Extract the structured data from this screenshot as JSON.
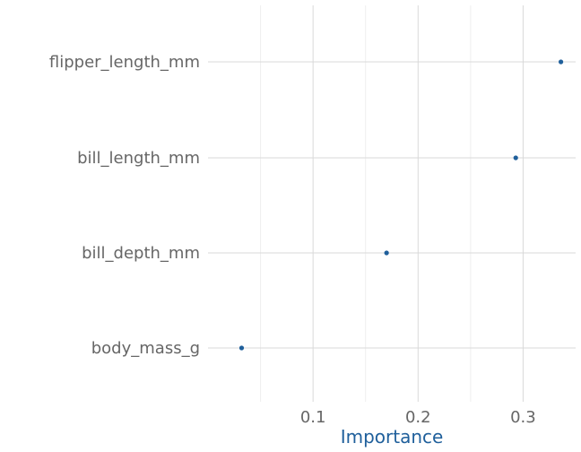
{
  "chart_data": {
    "type": "scatter",
    "title": "",
    "xlabel": "Importance",
    "ylabel": "",
    "categories": [
      "body_mass_g",
      "bill_depth_mm",
      "bill_length_mm",
      "flipper_length_mm"
    ],
    "values": [
      0.032,
      0.17,
      0.293,
      0.336
    ],
    "xlim": [
      0.0,
      0.35
    ],
    "xticks": [
      0.1,
      0.2,
      0.3
    ],
    "xtick_labels": [
      "0.1",
      "0.2",
      "0.3"
    ],
    "grid": true,
    "colors": {
      "point": "#1f5f9b",
      "axis_title": "#1f5f9b",
      "grid_major": "#d9d9d9",
      "grid_minor": "#efefef",
      "text": "#666666"
    }
  }
}
